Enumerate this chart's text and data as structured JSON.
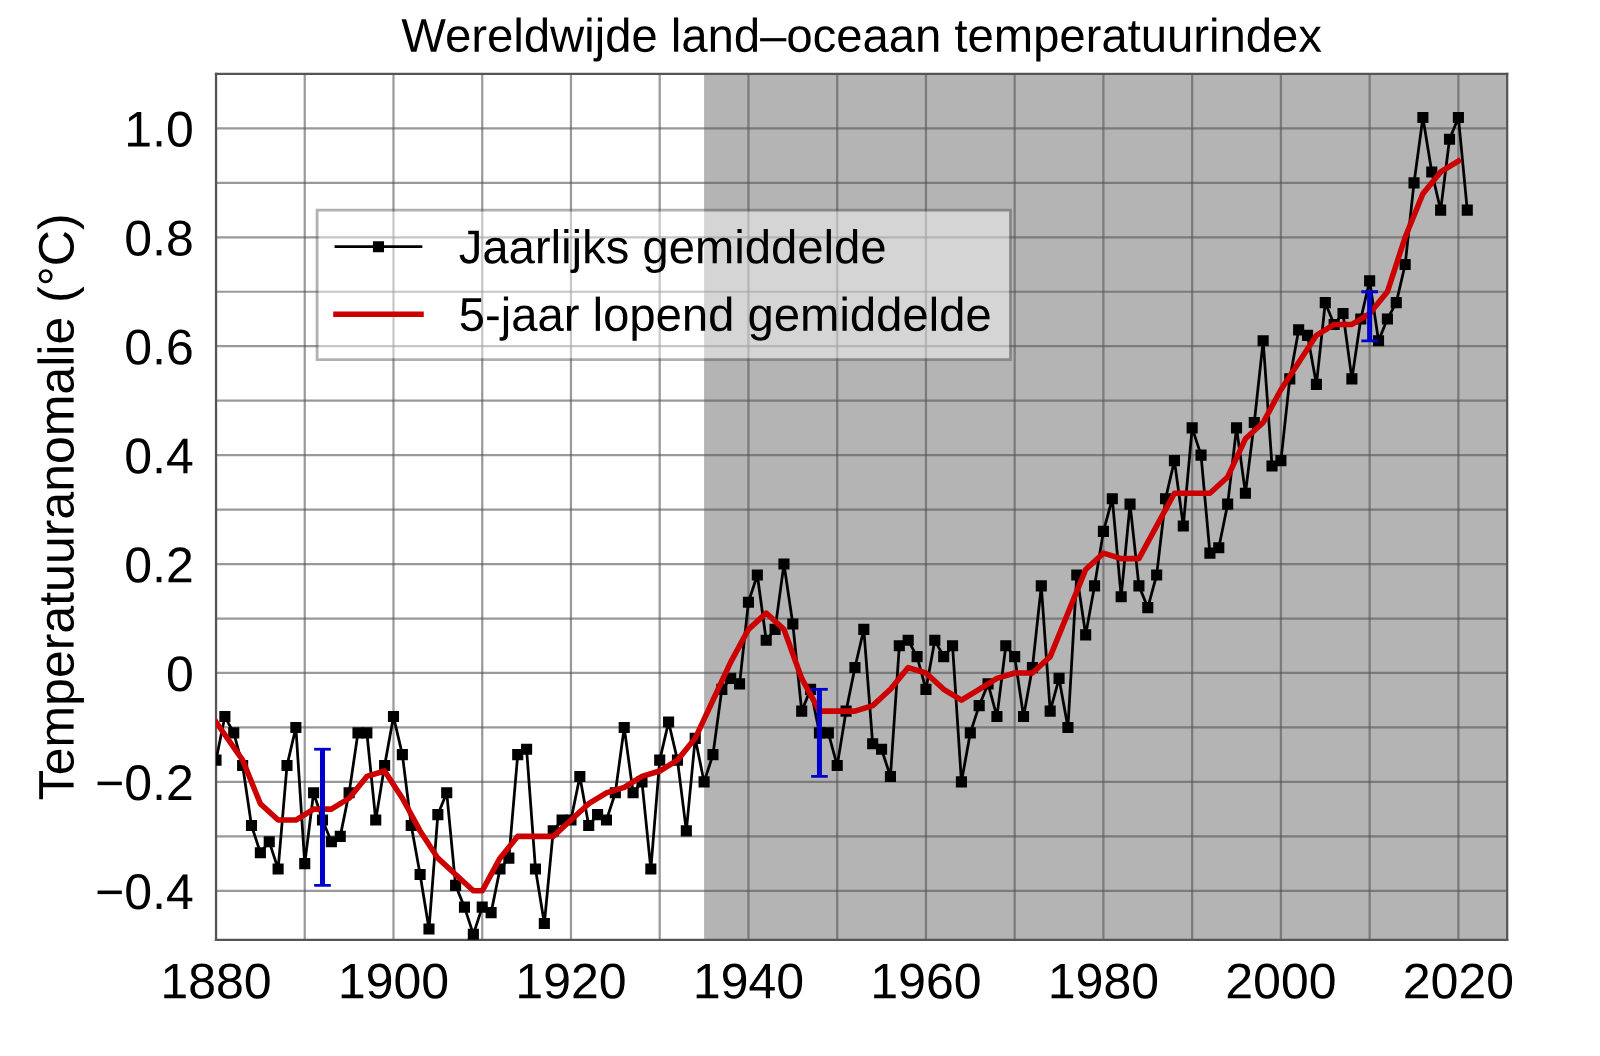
{
  "chart_data": {
    "type": "line",
    "title": "Wereldwijde land–oceaan temperatuurindex",
    "ylabel": "Temperatuuranomalie (°C)",
    "xlim": [
      1880,
      2025.5
    ],
    "ylim": [
      -0.49,
      1.1
    ],
    "xticks": [
      1880,
      {
        "value": 1890,
        "label": null
      },
      1900,
      {
        "value": 1910,
        "label": null
      },
      1920,
      {
        "value": 1930,
        "label": null
      },
      1940,
      {
        "value": 1950,
        "label": null
      },
      1960,
      {
        "value": 1970,
        "label": null
      },
      1980,
      {
        "value": 1990,
        "label": null
      },
      2000,
      {
        "value": 2010,
        "label": null
      },
      2020
    ],
    "yticks": [
      {
        "value": -0.4,
        "label": "−0.4"
      },
      {
        "value": -0.3,
        "label": null
      },
      {
        "value": -0.2,
        "label": "−0.2"
      },
      {
        "value": -0.1,
        "label": null
      },
      0,
      {
        "value": 0.1,
        "label": null
      },
      0.2,
      {
        "value": 0.3,
        "label": null
      },
      0.4,
      {
        "value": 0.5,
        "label": null
      },
      0.6,
      {
        "value": 0.7,
        "label": null
      },
      0.8,
      {
        "value": 0.9,
        "label": null
      },
      {
        "value": 1.0,
        "label": "1.0"
      }
    ],
    "grid": true,
    "legend": "top left",
    "bands": [
      {
        "axis": "x",
        "from": 1935,
        "to": 2025.5,
        "color": "#b4b4b4"
      }
    ],
    "series": [
      {
        "name": "Jaarlijks gemiddelde",
        "color": "#000000",
        "marker": "square",
        "line_style": "solid",
        "x": [
          1880,
          1881,
          1882,
          1883,
          1884,
          1885,
          1886,
          1887,
          1888,
          1889,
          1890,
          1891,
          1892,
          1893,
          1894,
          1895,
          1896,
          1897,
          1898,
          1899,
          1900,
          1901,
          1902,
          1903,
          1904,
          1905,
          1906,
          1907,
          1908,
          1909,
          1910,
          1911,
          1912,
          1913,
          1914,
          1915,
          1916,
          1917,
          1918,
          1919,
          1920,
          1921,
          1922,
          1923,
          1924,
          1925,
          1926,
          1927,
          1928,
          1929,
          1930,
          1931,
          1932,
          1933,
          1934,
          1935,
          1936,
          1937,
          1938,
          1939,
          1940,
          1941,
          1942,
          1943,
          1944,
          1945,
          1946,
          1947,
          1948,
          1949,
          1950,
          1951,
          1952,
          1953,
          1954,
          1955,
          1956,
          1957,
          1958,
          1959,
          1960,
          1961,
          1962,
          1963,
          1964,
          1965,
          1966,
          1967,
          1968,
          1969,
          1970,
          1971,
          1972,
          1973,
          1974,
          1975,
          1976,
          1977,
          1978,
          1979,
          1980,
          1981,
          1982,
          1983,
          1984,
          1985,
          1986,
          1987,
          1988,
          1989,
          1990,
          1991,
          1992,
          1993,
          1994,
          1995,
          1996,
          1997,
          1998,
          1999,
          2000,
          2001,
          2002,
          2003,
          2004,
          2005,
          2006,
          2007,
          2008,
          2009,
          2010,
          2011,
          2012,
          2013,
          2014,
          2015,
          2016,
          2017,
          2018,
          2019,
          2020,
          2021
        ],
        "values": [
          -0.16,
          -0.08,
          -0.11,
          -0.17,
          -0.28,
          -0.33,
          -0.31,
          -0.36,
          -0.17,
          -0.1,
          -0.35,
          -0.22,
          -0.27,
          -0.31,
          -0.3,
          -0.22,
          -0.11,
          -0.11,
          -0.27,
          -0.17,
          -0.08,
          -0.15,
          -0.28,
          -0.37,
          -0.47,
          -0.26,
          -0.22,
          -0.39,
          -0.43,
          -0.48,
          -0.43,
          -0.44,
          -0.36,
          -0.34,
          -0.15,
          -0.14,
          -0.36,
          -0.46,
          -0.29,
          -0.27,
          -0.27,
          -0.19,
          -0.28,
          -0.26,
          -0.27,
          -0.22,
          -0.1,
          -0.22,
          -0.2,
          -0.36,
          -0.16,
          -0.09,
          -0.16,
          -0.29,
          -0.12,
          -0.2,
          -0.15,
          -0.03,
          -0.01,
          -0.02,
          0.13,
          0.18,
          0.06,
          0.08,
          0.2,
          0.09,
          -0.07,
          -0.03,
          -0.11,
          -0.11,
          -0.17,
          -0.07,
          0.01,
          0.08,
          -0.13,
          -0.14,
          -0.19,
          0.05,
          0.06,
          0.03,
          -0.03,
          0.06,
          0.03,
          0.05,
          -0.2,
          -0.11,
          -0.06,
          -0.02,
          -0.08,
          0.05,
          0.03,
          -0.08,
          0.01,
          0.16,
          -0.07,
          -0.01,
          -0.1,
          0.18,
          0.07,
          0.16,
          0.26,
          0.32,
          0.14,
          0.31,
          0.16,
          0.12,
          0.18,
          0.32,
          0.39,
          0.27,
          0.45,
          0.4,
          0.22,
          0.23,
          0.31,
          0.45,
          0.33,
          0.46,
          0.61,
          0.38,
          0.39,
          0.54,
          0.63,
          0.62,
          0.53,
          0.68,
          0.64,
          0.66,
          0.54,
          0.65,
          0.72,
          0.61,
          0.65,
          0.68,
          0.75,
          0.9,
          1.02,
          0.92,
          0.85,
          0.98,
          1.02,
          0.85
        ]
      },
      {
        "name": "5-jaar lopend gemiddelde",
        "color": "#cc0000",
        "marker": "none",
        "line_style": "solid",
        "errors": [
          null,
          null,
          null,
          null,
          null,
          null,
          [
            -0.39,
            -0.14
          ],
          null,
          null,
          null,
          null,
          null,
          null,
          null,
          null,
          null,
          null,
          null,
          null,
          null,
          null,
          null,
          null,
          null,
          null,
          null,
          null,
          null,
          null,
          null,
          null,
          null,
          null,
          null,
          null,
          [
            -0.19,
            -0.03
          ],
          null,
          null,
          null,
          null,
          null,
          null,
          null,
          null,
          null,
          null,
          null,
          null,
          null,
          null,
          null,
          null,
          null,
          null,
          null,
          null,
          null,
          null,
          null,
          null,
          null,
          null,
          null,
          null,
          null,
          null,
          [
            0.61,
            0.7
          ],
          null,
          null,
          null,
          null,
          null
        ],
        "x": [
          1880,
          1883,
          1885,
          1887,
          1889,
          1891,
          1892,
          1893,
          1895,
          1897,
          1899,
          1901,
          1903,
          1905,
          1907,
          1909,
          1910,
          1912,
          1914,
          1916,
          1918,
          1920,
          1922,
          1924,
          1926,
          1928,
          1930,
          1932,
          1934,
          1936,
          1938,
          1940,
          1942,
          1944,
          1946,
          1948,
          1950,
          1952,
          1954,
          1956,
          1958,
          1960,
          1962,
          1964,
          1966,
          1968,
          1970,
          1972,
          1974,
          1976,
          1978,
          1980,
          1982,
          1984,
          1986,
          1988,
          1990,
          1992,
          1994,
          1996,
          1998,
          2000,
          2002,
          2004,
          2006,
          2008,
          2010,
          2012,
          2014,
          2016,
          2018,
          2020
        ],
        "values": [
          -0.09,
          -0.16,
          -0.24,
          -0.27,
          -0.27,
          -0.25,
          -0.25,
          -0.25,
          -0.23,
          -0.19,
          -0.18,
          -0.23,
          -0.29,
          -0.34,
          -0.37,
          -0.4,
          -0.4,
          -0.34,
          -0.3,
          -0.3,
          -0.3,
          -0.27,
          -0.24,
          -0.22,
          -0.21,
          -0.19,
          -0.18,
          -0.16,
          -0.12,
          -0.05,
          0.02,
          0.08,
          0.11,
          0.08,
          -0.01,
          -0.07,
          -0.07,
          -0.07,
          -0.06,
          -0.03,
          0.01,
          0.0,
          -0.03,
          -0.05,
          -0.03,
          -0.01,
          0.0,
          0.0,
          0.03,
          0.11,
          0.19,
          0.22,
          0.21,
          0.21,
          0.27,
          0.33,
          0.33,
          0.33,
          0.36,
          0.43,
          0.46,
          0.52,
          0.57,
          0.62,
          0.64,
          0.64,
          0.66,
          0.7,
          0.8,
          0.88,
          0.92,
          0.94
        ]
      }
    ]
  }
}
